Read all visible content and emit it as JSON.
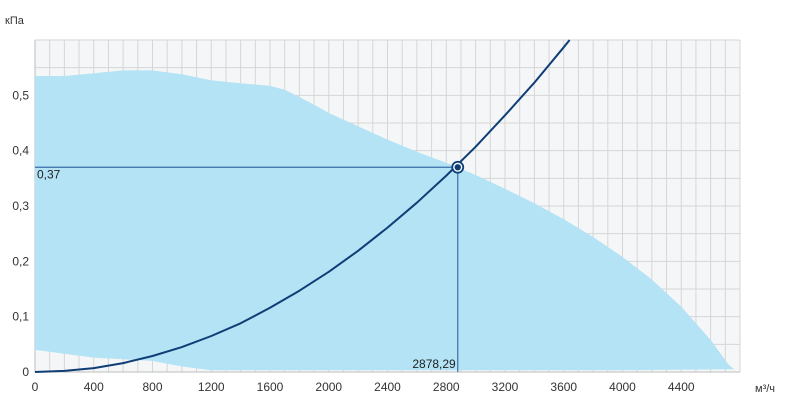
{
  "chart_data": {
    "type": "line",
    "ylabel": "кПа",
    "xlabel": "м³/ч",
    "xlim": [
      0,
      4800
    ],
    "ylim": [
      0,
      0.6
    ],
    "x_ticks": [
      0,
      400,
      800,
      1200,
      1600,
      2000,
      2400,
      2800,
      3200,
      3600,
      4000,
      4400
    ],
    "x_tick_labels": [
      "0",
      "400",
      "800",
      "1200",
      "1600",
      "2000",
      "2400",
      "2800",
      "3200",
      "3600",
      "4000",
      "4400"
    ],
    "y_ticks": [
      0,
      0.1,
      0.2,
      0.3,
      0.4,
      0.5
    ],
    "y_tick_labels": [
      "0",
      "0,1",
      "0,2",
      "0,3",
      "0,4",
      "0,5"
    ],
    "grid": true,
    "colors": {
      "region": "#b3e3f4",
      "curve": "#0f3e77",
      "guide": "#3b6eaa",
      "grid": "#d6d6d6",
      "plot_bg": "#f5f6f8"
    },
    "operating_region": {
      "upper": [
        [
          0,
          0.535
        ],
        [
          200,
          0.535
        ],
        [
          400,
          0.54
        ],
        [
          600,
          0.545
        ],
        [
          800,
          0.545
        ],
        [
          1000,
          0.538
        ],
        [
          1200,
          0.527
        ],
        [
          1400,
          0.522
        ],
        [
          1600,
          0.517
        ],
        [
          1700,
          0.51
        ],
        [
          1800,
          0.497
        ],
        [
          1900,
          0.483
        ],
        [
          2000,
          0.468
        ],
        [
          2200,
          0.444
        ],
        [
          2400,
          0.42
        ],
        [
          2600,
          0.398
        ],
        [
          2800,
          0.378
        ],
        [
          3000,
          0.356
        ],
        [
          3200,
          0.331
        ],
        [
          3400,
          0.305
        ],
        [
          3600,
          0.276
        ],
        [
          3800,
          0.244
        ],
        [
          4000,
          0.208
        ],
        [
          4200,
          0.167
        ],
        [
          4400,
          0.118
        ],
        [
          4600,
          0.058
        ],
        [
          4720,
          0.014
        ],
        [
          4760,
          0.005
        ]
      ],
      "lower": [
        [
          4760,
          0.005
        ],
        [
          4000,
          0.003
        ],
        [
          3000,
          0.003
        ],
        [
          2000,
          0.003
        ],
        [
          1200,
          0.003
        ],
        [
          1000,
          0.01
        ],
        [
          800,
          0.02
        ],
        [
          400,
          0.026
        ],
        [
          0,
          0.04
        ]
      ]
    },
    "series": [
      {
        "type": "line",
        "x": [
          0,
          200,
          400,
          600,
          800,
          1000,
          1200,
          1400,
          1600,
          1800,
          2000,
          2200,
          2400,
          2600,
          2800,
          3000,
          3200,
          3400,
          3600,
          3640
        ],
        "y": [
          0,
          0.002,
          0.007,
          0.016,
          0.029,
          0.045,
          0.065,
          0.088,
          0.116,
          0.147,
          0.181,
          0.219,
          0.261,
          0.306,
          0.355,
          0.407,
          0.464,
          0.523,
          0.587,
          0.6
        ]
      }
    ],
    "operating_point": {
      "x": 2878.29,
      "y": 0.37,
      "x_label": "2878,29",
      "y_label": "0,37"
    }
  }
}
